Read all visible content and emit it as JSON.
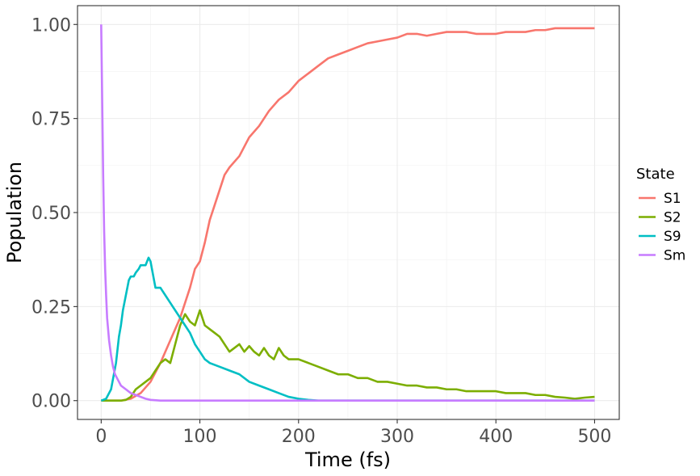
{
  "chart_data": {
    "type": "line",
    "xlabel": "Time (fs)",
    "ylabel": "Population",
    "xlim": [
      -24,
      525
    ],
    "ylim": [
      -0.05,
      1.05
    ],
    "x_ticks": [
      0,
      100,
      200,
      300,
      400,
      500
    ],
    "x_tick_labels": [
      "0",
      "100",
      "200",
      "300",
      "400",
      "500"
    ],
    "y_ticks": [
      0,
      0.25,
      0.5,
      0.75,
      1.0
    ],
    "y_tick_labels": [
      "0.00",
      "0.25",
      "0.50",
      "0.75",
      "1.00"
    ],
    "grid": true,
    "legend": {
      "title": "State",
      "position": "right"
    },
    "series": [
      {
        "name": "S1",
        "color": "#f8766d",
        "points": [
          [
            0,
            0
          ],
          [
            10,
            0
          ],
          [
            20,
            0
          ],
          [
            30,
            0.005
          ],
          [
            40,
            0.02
          ],
          [
            50,
            0.05
          ],
          [
            60,
            0.1
          ],
          [
            70,
            0.16
          ],
          [
            80,
            0.22
          ],
          [
            90,
            0.3
          ],
          [
            95,
            0.35
          ],
          [
            100,
            0.37
          ],
          [
            105,
            0.42
          ],
          [
            110,
            0.48
          ],
          [
            115,
            0.52
          ],
          [
            120,
            0.56
          ],
          [
            125,
            0.6
          ],
          [
            130,
            0.62
          ],
          [
            140,
            0.65
          ],
          [
            150,
            0.7
          ],
          [
            160,
            0.73
          ],
          [
            170,
            0.77
          ],
          [
            180,
            0.8
          ],
          [
            190,
            0.82
          ],
          [
            200,
            0.85
          ],
          [
            210,
            0.87
          ],
          [
            220,
            0.89
          ],
          [
            230,
            0.91
          ],
          [
            240,
            0.92
          ],
          [
            250,
            0.93
          ],
          [
            260,
            0.94
          ],
          [
            270,
            0.95
          ],
          [
            280,
            0.955
          ],
          [
            290,
            0.96
          ],
          [
            300,
            0.965
          ],
          [
            310,
            0.975
          ],
          [
            320,
            0.975
          ],
          [
            330,
            0.97
          ],
          [
            340,
            0.975
          ],
          [
            350,
            0.98
          ],
          [
            360,
            0.98
          ],
          [
            370,
            0.98
          ],
          [
            380,
            0.975
          ],
          [
            390,
            0.975
          ],
          [
            400,
            0.975
          ],
          [
            410,
            0.98
          ],
          [
            420,
            0.98
          ],
          [
            430,
            0.98
          ],
          [
            440,
            0.985
          ],
          [
            450,
            0.985
          ],
          [
            460,
            0.99
          ],
          [
            470,
            0.99
          ],
          [
            480,
            0.99
          ],
          [
            490,
            0.99
          ],
          [
            500,
            0.99
          ]
        ]
      },
      {
        "name": "S2",
        "color": "#7cae00",
        "points": [
          [
            0,
            0
          ],
          [
            10,
            0
          ],
          [
            20,
            0
          ],
          [
            25,
            0.002
          ],
          [
            30,
            0.01
          ],
          [
            35,
            0.03
          ],
          [
            40,
            0.04
          ],
          [
            45,
            0.05
          ],
          [
            50,
            0.06
          ],
          [
            55,
            0.08
          ],
          [
            60,
            0.1
          ],
          [
            65,
            0.11
          ],
          [
            70,
            0.1
          ],
          [
            75,
            0.15
          ],
          [
            80,
            0.2
          ],
          [
            85,
            0.23
          ],
          [
            90,
            0.21
          ],
          [
            95,
            0.2
          ],
          [
            100,
            0.24
          ],
          [
            105,
            0.2
          ],
          [
            110,
            0.19
          ],
          [
            115,
            0.18
          ],
          [
            120,
            0.17
          ],
          [
            125,
            0.15
          ],
          [
            130,
            0.13
          ],
          [
            135,
            0.14
          ],
          [
            140,
            0.15
          ],
          [
            145,
            0.13
          ],
          [
            150,
            0.145
          ],
          [
            155,
            0.13
          ],
          [
            160,
            0.12
          ],
          [
            165,
            0.14
          ],
          [
            170,
            0.12
          ],
          [
            175,
            0.11
          ],
          [
            180,
            0.14
          ],
          [
            185,
            0.12
          ],
          [
            190,
            0.11
          ],
          [
            200,
            0.11
          ],
          [
            210,
            0.1
          ],
          [
            220,
            0.09
          ],
          [
            230,
            0.08
          ],
          [
            240,
            0.07
          ],
          [
            250,
            0.07
          ],
          [
            260,
            0.06
          ],
          [
            270,
            0.06
          ],
          [
            280,
            0.05
          ],
          [
            290,
            0.05
          ],
          [
            300,
            0.045
          ],
          [
            310,
            0.04
          ],
          [
            320,
            0.04
          ],
          [
            330,
            0.035
          ],
          [
            340,
            0.035
          ],
          [
            350,
            0.03
          ],
          [
            360,
            0.03
          ],
          [
            370,
            0.025
          ],
          [
            380,
            0.025
          ],
          [
            390,
            0.025
          ],
          [
            400,
            0.025
          ],
          [
            410,
            0.02
          ],
          [
            420,
            0.02
          ],
          [
            430,
            0.02
          ],
          [
            440,
            0.015
          ],
          [
            450,
            0.015
          ],
          [
            460,
            0.01
          ],
          [
            470,
            0.008
          ],
          [
            480,
            0.005
          ],
          [
            490,
            0.008
          ],
          [
            500,
            0.01
          ]
        ]
      },
      {
        "name": "S9",
        "color": "#00bfc4",
        "points": [
          [
            0,
            0
          ],
          [
            5,
            0.005
          ],
          [
            10,
            0.03
          ],
          [
            15,
            0.1
          ],
          [
            18,
            0.17
          ],
          [
            20,
            0.2
          ],
          [
            22,
            0.24
          ],
          [
            25,
            0.28
          ],
          [
            28,
            0.32
          ],
          [
            30,
            0.33
          ],
          [
            33,
            0.33
          ],
          [
            35,
            0.34
          ],
          [
            38,
            0.35
          ],
          [
            40,
            0.36
          ],
          [
            45,
            0.36
          ],
          [
            48,
            0.38
          ],
          [
            50,
            0.37
          ],
          [
            55,
            0.3
          ],
          [
            60,
            0.3
          ],
          [
            65,
            0.28
          ],
          [
            70,
            0.26
          ],
          [
            75,
            0.24
          ],
          [
            80,
            0.22
          ],
          [
            85,
            0.2
          ],
          [
            90,
            0.18
          ],
          [
            95,
            0.15
          ],
          [
            100,
            0.13
          ],
          [
            105,
            0.11
          ],
          [
            110,
            0.1
          ],
          [
            120,
            0.09
          ],
          [
            130,
            0.08
          ],
          [
            140,
            0.07
          ],
          [
            150,
            0.05
          ],
          [
            160,
            0.04
          ],
          [
            170,
            0.03
          ],
          [
            180,
            0.02
          ],
          [
            190,
            0.01
          ],
          [
            200,
            0.005
          ],
          [
            210,
            0.002
          ],
          [
            220,
            0
          ],
          [
            500,
            0
          ]
        ]
      },
      {
        "name": "Sm",
        "color": "#c77cff",
        "points": [
          [
            0,
            1.0
          ],
          [
            1,
            0.8
          ],
          [
            2,
            0.6
          ],
          [
            3,
            0.45
          ],
          [
            4,
            0.35
          ],
          [
            5,
            0.28
          ],
          [
            6,
            0.22
          ],
          [
            8,
            0.16
          ],
          [
            10,
            0.12
          ],
          [
            12,
            0.09
          ],
          [
            14,
            0.07
          ],
          [
            16,
            0.06
          ],
          [
            18,
            0.05
          ],
          [
            20,
            0.04
          ],
          [
            25,
            0.03
          ],
          [
            30,
            0.02
          ],
          [
            35,
            0.015
          ],
          [
            40,
            0.01
          ],
          [
            45,
            0.005
          ],
          [
            50,
            0.002
          ],
          [
            60,
            0
          ],
          [
            500,
            0
          ]
        ]
      }
    ]
  }
}
